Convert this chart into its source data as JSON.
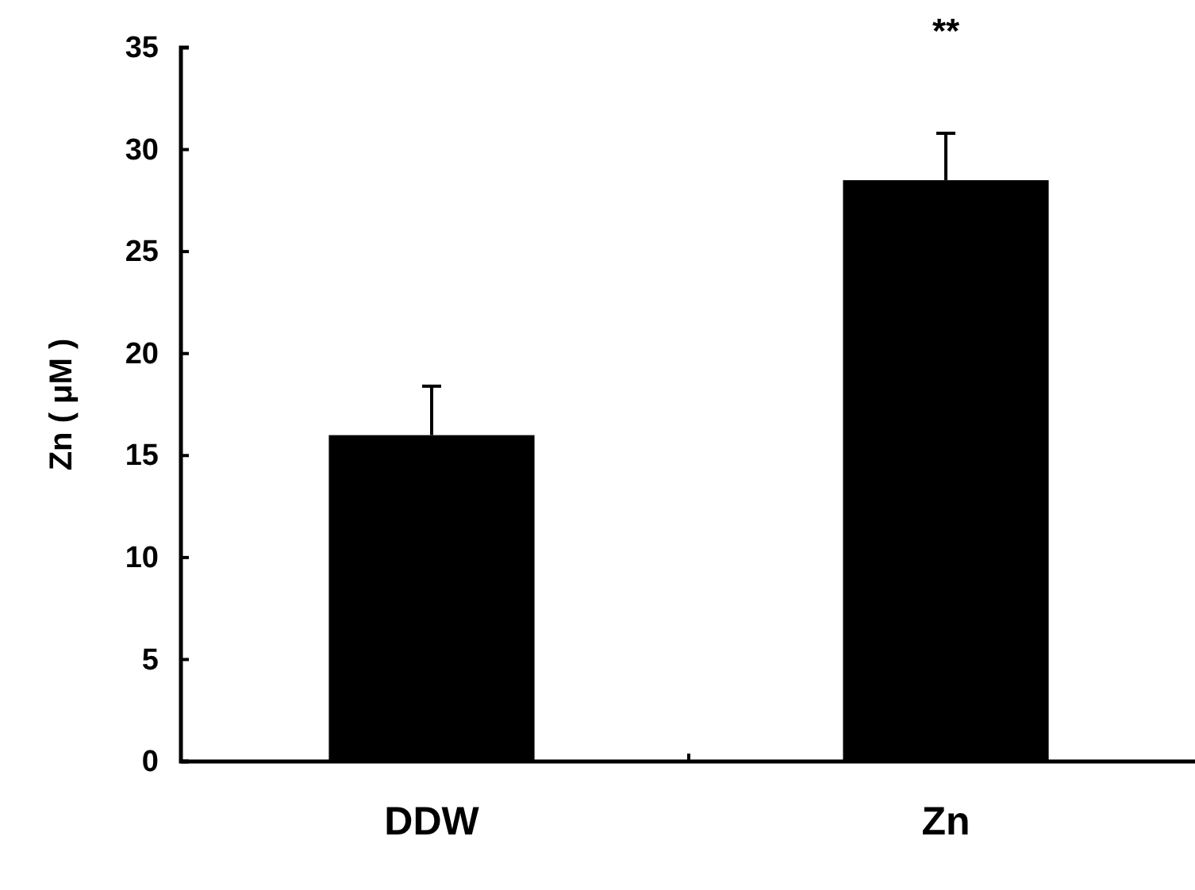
{
  "chart_data": {
    "type": "bar",
    "ylabel": "Zn ( μM )",
    "categories": [
      "DDW",
      "Zn"
    ],
    "values": [
      16,
      28.5
    ],
    "errors": [
      2.4,
      2.3
    ],
    "color": "#000000",
    "ylim": [
      0,
      35
    ],
    "yticks": [
      0,
      5,
      10,
      15,
      20,
      25,
      30,
      35
    ],
    "grid": false,
    "annotations": [
      "**"
    ]
  }
}
